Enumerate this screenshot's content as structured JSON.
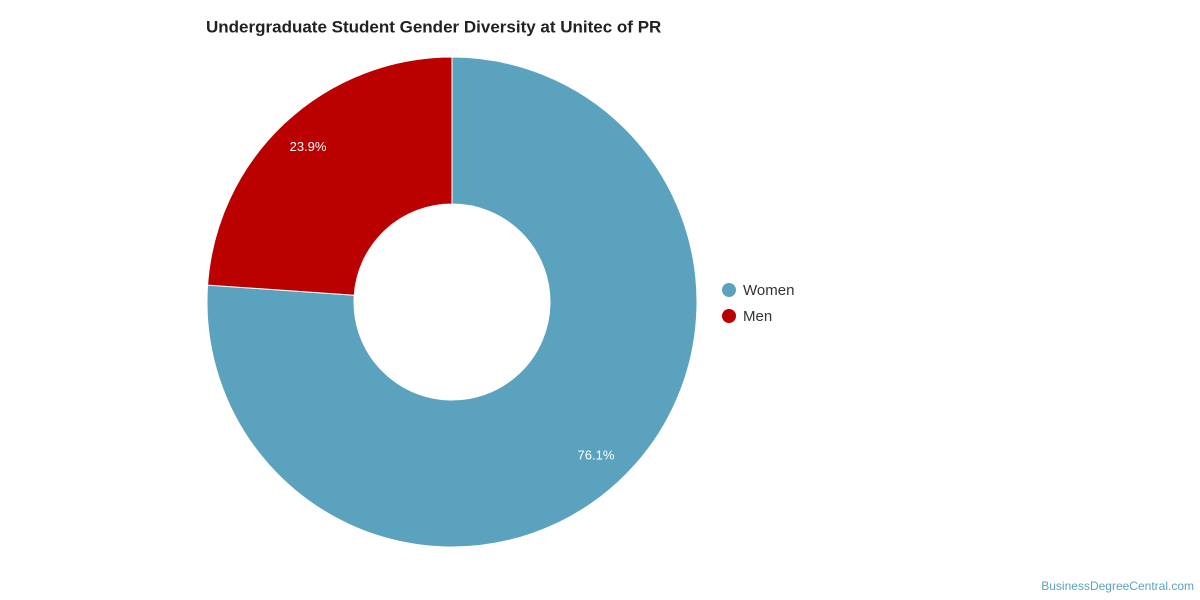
{
  "chart_data": {
    "type": "donut",
    "title": "Undergraduate Student Gender Diversity at Unitec of PR",
    "categories": [
      "Women",
      "Men"
    ],
    "values": [
      76.1,
      23.9
    ],
    "value_labels": [
      "76.1%",
      "23.9%"
    ],
    "colors": [
      "#5ba2be",
      "#bb0000"
    ],
    "legend": "right",
    "credit": "BusinessDegreeCentral.com"
  }
}
